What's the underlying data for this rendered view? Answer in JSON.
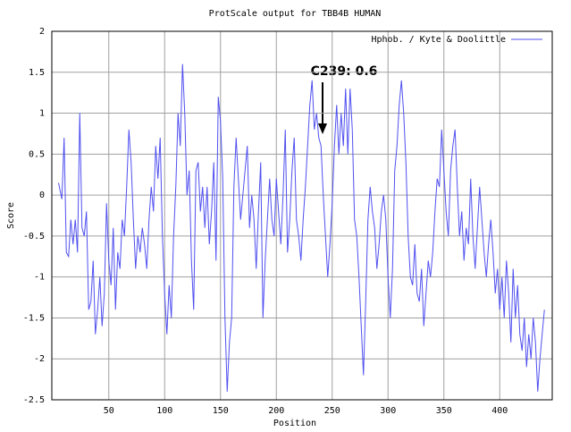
{
  "chart_data": {
    "type": "line",
    "title": "ProtScale output for TBB4B HUMAN",
    "x_label": "Position",
    "y_label": "Score",
    "x": [
      5,
      8,
      10,
      12,
      14,
      16,
      18,
      20,
      22,
      24,
      26,
      28,
      30,
      32,
      34,
      36,
      38,
      40,
      42,
      44,
      46,
      48,
      50,
      52,
      54,
      56,
      58,
      60,
      62,
      64,
      66,
      68,
      70,
      72,
      74,
      76,
      78,
      80,
      82,
      84,
      86,
      88,
      90,
      92,
      94,
      96,
      98,
      100,
      102,
      104,
      106,
      108,
      110,
      112,
      114,
      116,
      118,
      120,
      122,
      124,
      126,
      128,
      130,
      132,
      134,
      136,
      138,
      140,
      142,
      144,
      146,
      148,
      150,
      152,
      154,
      156,
      158,
      160,
      162,
      164,
      166,
      168,
      170,
      172,
      174,
      176,
      178,
      180,
      182,
      184,
      186,
      188,
      190,
      192,
      194,
      196,
      198,
      200,
      202,
      204,
      206,
      208,
      210,
      212,
      214,
      216,
      218,
      220,
      222,
      224,
      226,
      228,
      230,
      232,
      234,
      236,
      238,
      240,
      242,
      244,
      246,
      248,
      250,
      252,
      254,
      256,
      258,
      260,
      262,
      264,
      266,
      268,
      270,
      272,
      274,
      276,
      278,
      280,
      282,
      284,
      286,
      288,
      290,
      292,
      294,
      296,
      298,
      300,
      302,
      304,
      306,
      308,
      310,
      312,
      314,
      316,
      318,
      320,
      322,
      324,
      326,
      328,
      330,
      332,
      334,
      336,
      338,
      340,
      342,
      344,
      346,
      348,
      350,
      352,
      354,
      356,
      358,
      360,
      362,
      364,
      366,
      368,
      370,
      372,
      374,
      376,
      378,
      380,
      382,
      384,
      386,
      388,
      390,
      392,
      394,
      396,
      398,
      400,
      402,
      404,
      406,
      408,
      410,
      412,
      414,
      416,
      418,
      420,
      422,
      424,
      426,
      428,
      430,
      432,
      434,
      436,
      438,
      440
    ],
    "series": [
      {
        "name": "Hphob. / Kyte & Doolittle",
        "color": "#5050f0",
        "values": [
          0.15,
          -0.05,
          0.7,
          -0.7,
          -0.75,
          -0.3,
          -0.6,
          -0.3,
          -0.7,
          1.0,
          -0.4,
          -0.5,
          -0.2,
          -1.4,
          -1.3,
          -0.8,
          -1.7,
          -1.4,
          -1.0,
          -1.6,
          -1.2,
          -0.1,
          -0.8,
          -1.1,
          -0.4,
          -1.4,
          -0.7,
          -0.9,
          -0.3,
          -0.5,
          0.1,
          0.8,
          0.4,
          -0.3,
          -0.9,
          -0.5,
          -0.7,
          -0.4,
          -0.6,
          -0.9,
          -0.3,
          0.1,
          -0.2,
          0.6,
          0.2,
          0.7,
          -0.5,
          -1.2,
          -1.7,
          -1.1,
          -1.5,
          -0.5,
          0.1,
          1.0,
          0.6,
          1.6,
          1.0,
          0.0,
          0.3,
          -0.8,
          -1.4,
          0.3,
          0.4,
          -0.2,
          0.1,
          -0.4,
          0.1,
          -0.6,
          -0.2,
          0.4,
          -0.8,
          1.2,
          0.9,
          0.2,
          -1.5,
          -2.4,
          -1.8,
          -1.5,
          0.1,
          0.7,
          0.2,
          -0.3,
          0.0,
          0.3,
          0.6,
          -0.4,
          0.0,
          -0.3,
          -0.9,
          -0.2,
          0.4,
          -1.5,
          -0.8,
          -0.3,
          0.2,
          -0.3,
          -0.5,
          0.2,
          -0.2,
          -0.6,
          0.0,
          0.8,
          -0.7,
          -0.3,
          0.3,
          0.7,
          -0.3,
          -0.5,
          -0.8,
          -0.3,
          0.1,
          0.6,
          1.1,
          1.4,
          0.8,
          1.0,
          0.7,
          0.6,
          0.0,
          -0.5,
          -1.0,
          -0.6,
          -0.1,
          0.6,
          1.1,
          0.5,
          1.0,
          0.6,
          1.3,
          0.5,
          1.3,
          0.8,
          -0.3,
          -0.5,
          -1.0,
          -1.6,
          -2.2,
          -1.3,
          -0.3,
          0.1,
          -0.2,
          -0.4,
          -0.9,
          -0.6,
          -0.2,
          0.0,
          -0.3,
          -1.0,
          -1.5,
          -0.9,
          0.3,
          0.6,
          1.1,
          1.4,
          1.0,
          0.4,
          -0.5,
          -1.0,
          -1.1,
          -0.6,
          -1.2,
          -1.3,
          -0.9,
          -1.6,
          -1.2,
          -0.8,
          -1.0,
          -0.7,
          -0.2,
          0.2,
          0.1,
          0.8,
          0.3,
          -0.2,
          -0.5,
          0.3,
          0.6,
          0.8,
          0.1,
          -0.5,
          -0.2,
          -0.8,
          -0.4,
          -0.6,
          0.2,
          -0.5,
          -0.9,
          -0.4,
          0.1,
          -0.3,
          -0.7,
          -1.0,
          -0.6,
          -0.3,
          -0.7,
          -1.2,
          -0.9,
          -1.4,
          -1.0,
          -1.5,
          -0.8,
          -1.2,
          -1.8,
          -0.9,
          -1.5,
          -1.1,
          -1.7,
          -1.9,
          -1.5,
          -2.1,
          -1.7,
          -2.0,
          -1.5,
          -1.8,
          -2.4,
          -2.0,
          -1.7,
          -1.4
        ]
      }
    ],
    "xlim": [
      -1,
      447
    ],
    "ylim": [
      -2.5,
      2
    ],
    "xticks": [
      50,
      100,
      150,
      200,
      250,
      300,
      350,
      400
    ],
    "yticks": [
      -2.5,
      -2,
      -1.5,
      -1,
      -0.5,
      0,
      0.5,
      1,
      1.5,
      2
    ],
    "grid": true,
    "annotation": {
      "text": "C239: 0.6"
    }
  }
}
